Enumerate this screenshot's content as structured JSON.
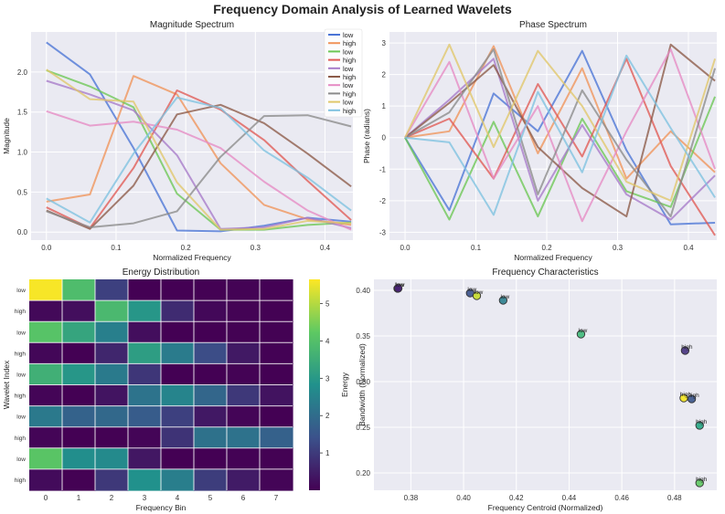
{
  "figure": {
    "title": "Frequency Domain Analysis of Learned Wavelets"
  },
  "colors": [
    "#4a74d6",
    "#f0935a",
    "#6cc755",
    "#e05a54",
    "#a77ac9",
    "#8c5a48",
    "#e58ac4",
    "#8a8a8a",
    "#e0c76a",
    "#7ec1e0"
  ],
  "chart_data": [
    {
      "type": "line",
      "title": "Magnitude Spectrum",
      "xlabel": "Normalized Frequency",
      "ylabel": "Magnitude",
      "xlim": [
        -0.022,
        0.44
      ],
      "ylim": [
        -0.1,
        2.5
      ],
      "xticks": [
        0.0,
        0.1,
        0.2,
        0.3,
        0.4
      ],
      "yticks": [
        0.0,
        0.5,
        1.0,
        1.5,
        2.0
      ],
      "x": [
        0.0,
        0.0625,
        0.125,
        0.1875,
        0.25,
        0.3125,
        0.375,
        0.4375
      ],
      "legend": "top-right",
      "series": [
        {
          "name": "low",
          "values": [
            2.37,
            1.97,
            1.05,
            0.02,
            0.01,
            0.08,
            0.18,
            0.13
          ]
        },
        {
          "name": "high",
          "values": [
            0.38,
            0.47,
            1.95,
            1.72,
            0.86,
            0.34,
            0.16,
            0.09
          ]
        },
        {
          "name": "low",
          "values": [
            2.02,
            1.82,
            1.56,
            0.48,
            0.03,
            0.03,
            0.09,
            0.12
          ]
        },
        {
          "name": "high",
          "values": [
            0.31,
            0.05,
            0.8,
            1.77,
            1.53,
            1.15,
            0.64,
            0.15
          ]
        },
        {
          "name": "low",
          "values": [
            1.89,
            1.72,
            1.52,
            0.96,
            0.04,
            0.06,
            0.18,
            0.05
          ]
        },
        {
          "name": "high",
          "values": [
            0.27,
            0.04,
            0.58,
            1.47,
            1.59,
            1.36,
            0.98,
            0.57
          ]
        },
        {
          "name": "low",
          "values": [
            1.51,
            1.33,
            1.38,
            1.28,
            1.05,
            0.63,
            0.27,
            0.03
          ]
        },
        {
          "name": "high",
          "values": [
            0.26,
            0.06,
            0.11,
            0.26,
            0.94,
            1.45,
            1.46,
            1.32
          ]
        },
        {
          "name": "low",
          "values": [
            2.03,
            1.66,
            1.63,
            0.62,
            0.03,
            0.04,
            0.14,
            0.11
          ]
        },
        {
          "name": "high",
          "values": [
            0.42,
            0.12,
            0.98,
            1.68,
            1.55,
            1.02,
            0.68,
            0.27
          ]
        }
      ]
    },
    {
      "type": "line",
      "title": "Phase Spectrum",
      "xlabel": "Normalized Frequency",
      "ylabel": "Phase (radians)",
      "xlim": [
        -0.022,
        0.44
      ],
      "ylim": [
        -3.25,
        3.35
      ],
      "xticks": [
        0.0,
        0.1,
        0.2,
        0.3,
        0.4
      ],
      "yticks": [
        -3,
        -2,
        -1,
        0,
        1,
        2,
        3
      ],
      "x": [
        0.0,
        0.0625,
        0.125,
        0.1875,
        0.25,
        0.3125,
        0.375,
        0.4375
      ],
      "series": [
        {
          "name": "low",
          "values": [
            0,
            -2.3,
            1.4,
            0.2,
            2.75,
            -0.4,
            -2.75,
            -2.7
          ]
        },
        {
          "name": "high",
          "values": [
            0,
            0.2,
            2.9,
            -0.5,
            2.2,
            -1.3,
            0.2,
            -1.1
          ]
        },
        {
          "name": "low",
          "values": [
            0,
            -2.6,
            0.5,
            -2.5,
            0.6,
            -1.7,
            -2.2,
            1.3
          ]
        },
        {
          "name": "high",
          "values": [
            0,
            0.6,
            -1.3,
            1.7,
            -0.6,
            2.5,
            -0.9,
            -3.1
          ]
        },
        {
          "name": "low",
          "values": [
            0,
            1.2,
            2.5,
            -2.0,
            0.4,
            -1.8,
            -2.6,
            -1.2
          ]
        },
        {
          "name": "high",
          "values": [
            0,
            1.1,
            2.3,
            -0.3,
            -1.6,
            -2.5,
            2.95,
            1.8
          ]
        },
        {
          "name": "low",
          "values": [
            0,
            2.4,
            -1.3,
            1.0,
            -2.65,
            0.2,
            2.8,
            -1.0
          ]
        },
        {
          "name": "high",
          "values": [
            0,
            0.8,
            2.8,
            -1.8,
            1.5,
            -0.7,
            -2.5,
            2.2
          ]
        },
        {
          "name": "low",
          "values": [
            0,
            2.95,
            -0.3,
            2.75,
            1.0,
            -1.4,
            -2.0,
            2.5
          ]
        },
        {
          "name": "high",
          "values": [
            0,
            -0.15,
            -2.45,
            1.45,
            -1.1,
            2.6,
            0.3,
            -1.9
          ]
        }
      ]
    },
    {
      "type": "heatmap",
      "title": "Energy Distribution",
      "xlabel": "Frequency Bin",
      "ylabel": "Wavelet Index",
      "xticks": [
        0,
        1,
        2,
        3,
        4,
        5,
        6,
        7
      ],
      "row_labels": [
        "low",
        "high",
        "low",
        "high",
        "low",
        "high",
        "low",
        "high",
        "low",
        "high"
      ],
      "colorbar_label": "Energy",
      "colorbar_ticks": [
        1,
        2,
        3,
        4,
        5
      ],
      "vmin": 0.0,
      "vmax": 5.65,
      "values": [
        [
          5.6,
          3.9,
          1.1,
          0.0,
          0.0,
          0.01,
          0.03,
          0.02
        ],
        [
          0.14,
          0.22,
          3.8,
          2.96,
          0.74,
          0.12,
          0.03,
          0.01
        ],
        [
          4.08,
          3.3,
          2.43,
          0.23,
          0.0,
          0.0,
          0.01,
          0.01
        ],
        [
          0.1,
          0.0,
          0.64,
          3.13,
          2.34,
          1.32,
          0.41,
          0.02
        ],
        [
          3.57,
          2.96,
          2.31,
          0.92,
          0.0,
          0.0,
          0.03,
          0.0
        ],
        [
          0.07,
          0.0,
          0.34,
          2.16,
          2.53,
          1.85,
          0.96,
          0.32
        ],
        [
          2.28,
          1.77,
          1.9,
          1.64,
          1.1,
          0.4,
          0.07,
          0.0
        ],
        [
          0.07,
          0.0,
          0.01,
          0.07,
          0.88,
          2.1,
          2.13,
          1.74
        ],
        [
          4.12,
          2.76,
          2.66,
          0.38,
          0.0,
          0.0,
          0.02,
          0.01
        ],
        [
          0.18,
          0.01,
          0.96,
          2.82,
          2.4,
          1.04,
          0.46,
          0.07
        ]
      ]
    },
    {
      "type": "scatter",
      "title": "Frequency Characteristics",
      "xlabel": "Frequency Centroid (Normalized)",
      "ylabel": "Bandwidth (Normalized)",
      "xlim": [
        0.366,
        0.496
      ],
      "ylim": [
        0.181,
        0.412
      ],
      "xticks": [
        0.38,
        0.4,
        0.42,
        0.44,
        0.46,
        0.48
      ],
      "yticks": [
        0.2,
        0.25,
        0.3,
        0.35,
        0.4
      ],
      "points": [
        {
          "x": 0.375,
          "y": 0.402,
          "label": "low",
          "color": "#45185a"
        },
        {
          "x": 0.3752,
          "y": 0.4022,
          "label": "low",
          "color": "#482374"
        },
        {
          "x": 0.4025,
          "y": 0.397,
          "label": "low",
          "color": "#3b528b"
        },
        {
          "x": 0.405,
          "y": 0.394,
          "label": "low",
          "color": "#c5dc2a"
        },
        {
          "x": 0.415,
          "y": 0.389,
          "label": "low",
          "color": "#2c7f8e"
        },
        {
          "x": 0.4445,
          "y": 0.352,
          "label": "low",
          "color": "#3fb979"
        },
        {
          "x": 0.484,
          "y": 0.334,
          "label": "high",
          "color": "#46327e"
        },
        {
          "x": 0.4835,
          "y": 0.282,
          "label": "high",
          "color": "#f3e51f"
        },
        {
          "x": 0.4865,
          "y": 0.281,
          "label": "high",
          "color": "#3b558b"
        },
        {
          "x": 0.4895,
          "y": 0.252,
          "label": "high",
          "color": "#26a784"
        },
        {
          "x": 0.4895,
          "y": 0.189,
          "label": "high",
          "color": "#5ec962"
        }
      ]
    }
  ]
}
